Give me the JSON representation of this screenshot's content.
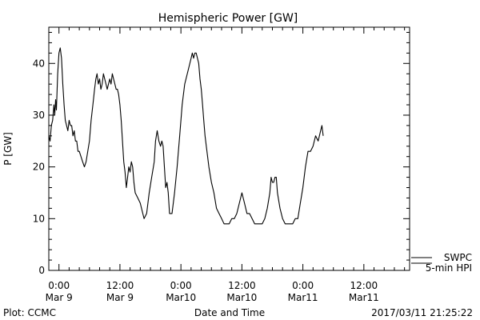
{
  "chart_data": {
    "type": "line",
    "title": "Hemispheric Power [GW]",
    "ylabel": "P [GW]",
    "xlabel": "Date and Time",
    "ylim": [
      0,
      47
    ],
    "yticks": [
      0,
      10,
      20,
      30,
      40
    ],
    "xlim": [
      "2017-03-08T22:00",
      "2017-03-11T21:00"
    ],
    "xticks": [
      {
        "t": "2017-03-09T00:00",
        "line1": "0:00",
        "line2": "Mar 9"
      },
      {
        "t": "2017-03-09T12:00",
        "line1": "12:00",
        "line2": "Mar 9"
      },
      {
        "t": "2017-03-10T00:00",
        "line1": "0:00",
        "line2": "Mar10"
      },
      {
        "t": "2017-03-10T12:00",
        "line1": "12:00",
        "line2": "Mar10"
      },
      {
        "t": "2017-03-11T00:00",
        "line1": "0:00",
        "line2": "Mar11"
      },
      {
        "t": "2017-03-11T12:00",
        "line1": "12:00",
        "line2": "Mar11"
      }
    ],
    "legend": {
      "placement": "bottom-right",
      "line1": "SWPC",
      "line2": "5-min HPI"
    },
    "series": [
      {
        "color": "#000000",
        "points": [
          [
            "2017-03-08T22:00",
            26
          ],
          [
            "2017-03-08T22:15",
            25
          ],
          [
            "2017-03-08T22:30",
            28
          ],
          [
            "2017-03-08T22:45",
            29
          ],
          [
            "2017-03-08T23:00",
            32
          ],
          [
            "2017-03-08T23:10",
            30
          ],
          [
            "2017-03-08T23:20",
            33
          ],
          [
            "2017-03-08T23:30",
            31
          ],
          [
            "2017-03-08T23:45",
            38
          ],
          [
            "2017-03-09T00:00",
            42
          ],
          [
            "2017-03-09T00:15",
            43
          ],
          [
            "2017-03-09T00:30",
            41
          ],
          [
            "2017-03-09T00:45",
            36
          ],
          [
            "2017-03-09T01:00",
            32
          ],
          [
            "2017-03-09T01:15",
            29
          ],
          [
            "2017-03-09T01:30",
            28
          ],
          [
            "2017-03-09T01:45",
            27
          ],
          [
            "2017-03-09T02:00",
            29
          ],
          [
            "2017-03-09T02:15",
            28
          ],
          [
            "2017-03-09T02:30",
            28
          ],
          [
            "2017-03-09T02:45",
            26
          ],
          [
            "2017-03-09T03:00",
            27
          ],
          [
            "2017-03-09T03:15",
            25
          ],
          [
            "2017-03-09T03:30",
            25
          ],
          [
            "2017-03-09T03:45",
            23
          ],
          [
            "2017-03-09T04:00",
            23
          ],
          [
            "2017-03-09T04:20",
            22
          ],
          [
            "2017-03-09T04:40",
            21
          ],
          [
            "2017-03-09T05:00",
            20
          ],
          [
            "2017-03-09T05:20",
            21
          ],
          [
            "2017-03-09T05:40",
            23
          ],
          [
            "2017-03-09T06:00",
            25
          ],
          [
            "2017-03-09T06:20",
            29
          ],
          [
            "2017-03-09T06:40",
            32
          ],
          [
            "2017-03-09T07:00",
            35
          ],
          [
            "2017-03-09T07:15",
            37
          ],
          [
            "2017-03-09T07:30",
            38
          ],
          [
            "2017-03-09T07:45",
            36
          ],
          [
            "2017-03-09T08:00",
            37
          ],
          [
            "2017-03-09T08:15",
            35
          ],
          [
            "2017-03-09T08:30",
            36
          ],
          [
            "2017-03-09T08:45",
            38
          ],
          [
            "2017-03-09T09:00",
            37
          ],
          [
            "2017-03-09T09:15",
            36
          ],
          [
            "2017-03-09T09:30",
            35
          ],
          [
            "2017-03-09T09:45",
            36
          ],
          [
            "2017-03-09T10:00",
            37
          ],
          [
            "2017-03-09T10:15",
            36
          ],
          [
            "2017-03-09T10:30",
            38
          ],
          [
            "2017-03-09T10:45",
            37
          ],
          [
            "2017-03-09T11:00",
            36
          ],
          [
            "2017-03-09T11:15",
            35
          ],
          [
            "2017-03-09T11:30",
            35
          ],
          [
            "2017-03-09T11:45",
            34
          ],
          [
            "2017-03-09T12:00",
            32
          ],
          [
            "2017-03-09T12:15",
            29
          ],
          [
            "2017-03-09T12:30",
            25
          ],
          [
            "2017-03-09T12:45",
            21
          ],
          [
            "2017-03-09T13:00",
            19
          ],
          [
            "2017-03-09T13:15",
            16
          ],
          [
            "2017-03-09T13:30",
            18
          ],
          [
            "2017-03-09T13:45",
            20
          ],
          [
            "2017-03-09T14:00",
            19
          ],
          [
            "2017-03-09T14:15",
            21
          ],
          [
            "2017-03-09T14:30",
            20
          ],
          [
            "2017-03-09T14:45",
            17
          ],
          [
            "2017-03-09T15:00",
            15
          ],
          [
            "2017-03-09T15:30",
            14
          ],
          [
            "2017-03-09T16:00",
            13
          ],
          [
            "2017-03-09T16:30",
            11
          ],
          [
            "2017-03-09T16:45",
            10
          ],
          [
            "2017-03-09T17:15",
            11
          ],
          [
            "2017-03-09T17:45",
            15
          ],
          [
            "2017-03-09T18:15",
            18
          ],
          [
            "2017-03-09T18:45",
            21
          ],
          [
            "2017-03-09T19:00",
            25
          ],
          [
            "2017-03-09T19:20",
            27
          ],
          [
            "2017-03-09T19:40",
            25
          ],
          [
            "2017-03-09T20:00",
            24
          ],
          [
            "2017-03-09T20:15",
            25
          ],
          [
            "2017-03-09T20:30",
            24
          ],
          [
            "2017-03-09T20:45",
            20
          ],
          [
            "2017-03-09T21:00",
            16
          ],
          [
            "2017-03-09T21:15",
            17
          ],
          [
            "2017-03-09T21:30",
            15
          ],
          [
            "2017-03-09T21:45",
            11
          ],
          [
            "2017-03-09T22:15",
            11
          ],
          [
            "2017-03-09T22:45",
            15
          ],
          [
            "2017-03-09T23:15",
            20
          ],
          [
            "2017-03-09T23:45",
            26
          ],
          [
            "2017-03-10T00:15",
            32
          ],
          [
            "2017-03-10T00:45",
            36
          ],
          [
            "2017-03-10T01:15",
            38
          ],
          [
            "2017-03-10T01:30",
            39
          ],
          [
            "2017-03-10T01:45",
            40
          ],
          [
            "2017-03-10T02:00",
            41
          ],
          [
            "2017-03-10T02:15",
            42
          ],
          [
            "2017-03-10T02:30",
            41
          ],
          [
            "2017-03-10T02:45",
            42
          ],
          [
            "2017-03-10T03:00",
            42
          ],
          [
            "2017-03-10T03:15",
            41
          ],
          [
            "2017-03-10T03:30",
            40
          ],
          [
            "2017-03-10T03:45",
            37
          ],
          [
            "2017-03-10T04:00",
            35
          ],
          [
            "2017-03-10T04:15",
            32
          ],
          [
            "2017-03-10T04:30",
            29
          ],
          [
            "2017-03-10T04:45",
            26
          ],
          [
            "2017-03-10T05:00",
            24
          ],
          [
            "2017-03-10T05:30",
            20
          ],
          [
            "2017-03-10T06:00",
            17
          ],
          [
            "2017-03-10T06:30",
            15
          ],
          [
            "2017-03-10T07:00",
            12
          ],
          [
            "2017-03-10T07:30",
            11
          ],
          [
            "2017-03-10T08:00",
            10
          ],
          [
            "2017-03-10T08:30",
            9
          ],
          [
            "2017-03-10T09:30",
            9
          ],
          [
            "2017-03-10T10:00",
            10
          ],
          [
            "2017-03-10T10:30",
            10
          ],
          [
            "2017-03-10T11:00",
            11
          ],
          [
            "2017-03-10T11:30",
            13
          ],
          [
            "2017-03-10T12:00",
            15
          ],
          [
            "2017-03-10T12:30",
            13
          ],
          [
            "2017-03-10T13:00",
            11
          ],
          [
            "2017-03-10T13:30",
            11
          ],
          [
            "2017-03-10T14:00",
            10
          ],
          [
            "2017-03-10T14:30",
            9
          ],
          [
            "2017-03-10T16:00",
            9
          ],
          [
            "2017-03-10T16:30",
            10
          ],
          [
            "2017-03-10T17:00",
            12
          ],
          [
            "2017-03-10T17:30",
            15
          ],
          [
            "2017-03-10T17:45",
            18
          ],
          [
            "2017-03-10T18:00",
            17
          ],
          [
            "2017-03-10T18:15",
            17
          ],
          [
            "2017-03-10T18:30",
            18
          ],
          [
            "2017-03-10T18:45",
            18
          ],
          [
            "2017-03-10T19:00",
            15
          ],
          [
            "2017-03-10T19:30",
            12
          ],
          [
            "2017-03-10T20:00",
            10
          ],
          [
            "2017-03-10T20:30",
            9
          ],
          [
            "2017-03-10T22:00",
            9
          ],
          [
            "2017-03-10T22:30",
            10
          ],
          [
            "2017-03-10T23:00",
            10
          ],
          [
            "2017-03-10T23:30",
            13
          ],
          [
            "2017-03-11T00:00",
            16
          ],
          [
            "2017-03-11T00:30",
            20
          ],
          [
            "2017-03-11T01:00",
            23
          ],
          [
            "2017-03-11T01:30",
            23
          ],
          [
            "2017-03-11T02:00",
            24
          ],
          [
            "2017-03-11T02:30",
            26
          ],
          [
            "2017-03-11T03:00",
            25
          ],
          [
            "2017-03-11T03:30",
            27
          ],
          [
            "2017-03-11T03:45",
            28
          ],
          [
            "2017-03-11T04:00",
            26
          ]
        ]
      }
    ],
    "notes": {
      "left": "Plot: CCMC",
      "right": "2017/03/11 21:25:22"
    }
  }
}
